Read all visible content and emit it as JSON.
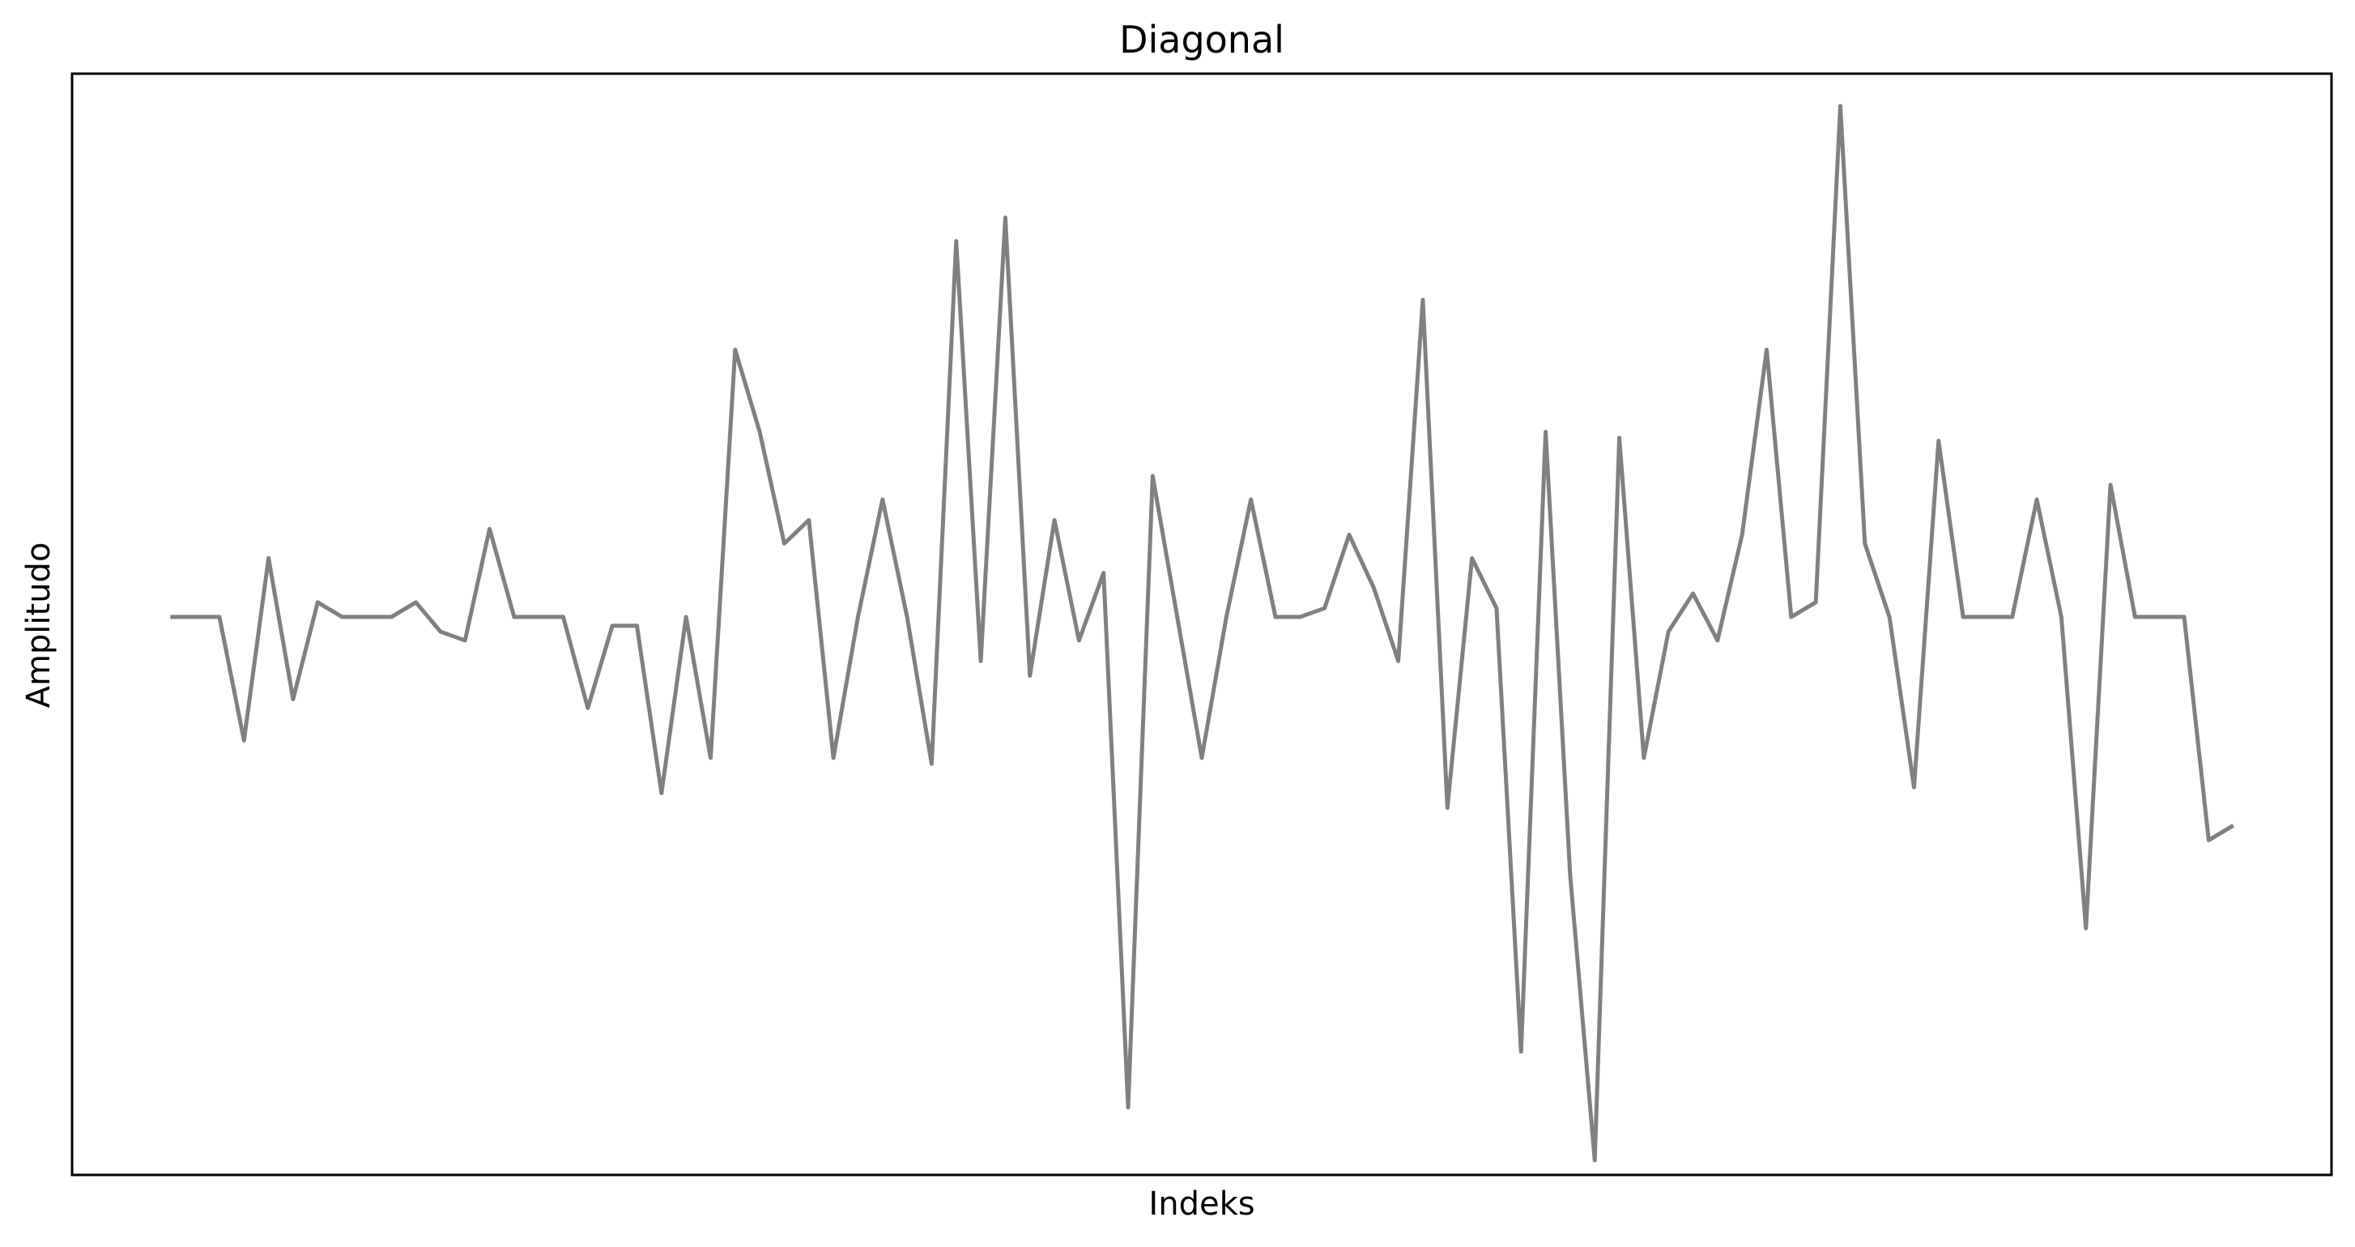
{
  "chart_data": {
    "type": "line",
    "title": "Diagonal",
    "xlabel": "Indeks",
    "ylabel": "Amplitudo",
    "xticks": [],
    "yticks": [],
    "grid": false,
    "legend": "none",
    "xlim": [
      -4,
      88
    ],
    "ylim": [
      -190,
      185
    ],
    "series": [
      {
        "color": "#808080",
        "x": [
          0,
          1,
          2,
          3,
          4,
          5,
          6,
          7,
          8,
          9,
          10,
          11,
          12,
          13,
          14,
          15,
          16,
          17,
          18,
          19,
          20,
          21,
          22,
          23,
          24,
          25,
          26,
          27,
          28,
          29,
          30,
          31,
          32,
          33,
          34,
          35,
          36,
          37,
          38,
          39,
          40,
          41,
          42,
          43,
          44,
          45,
          46,
          47,
          48,
          49,
          50,
          51,
          52,
          53,
          54,
          55,
          56,
          57,
          58,
          59,
          60,
          61,
          62,
          63,
          64,
          65,
          66,
          67,
          68,
          69,
          70,
          71,
          72,
          73,
          74,
          75,
          76,
          77,
          78,
          79,
          80,
          81,
          82,
          83,
          84
        ],
        "values": [
          0,
          0,
          0,
          -42,
          20,
          -28,
          5,
          0,
          0,
          0,
          5,
          -5,
          -8,
          30,
          0,
          0,
          0,
          -31,
          -3,
          -3,
          -60,
          0,
          -48,
          91,
          63,
          25,
          33,
          -48,
          0,
          40,
          0,
          -50,
          128,
          -15,
          136,
          -20,
          33,
          -8,
          15,
          -167,
          48,
          0,
          -48,
          0,
          40,
          0,
          0,
          3,
          28,
          10,
          -15,
          108,
          -65,
          20,
          3,
          -148,
          63,
          -88,
          -185,
          61,
          -48,
          -5,
          8,
          -8,
          28,
          91,
          0,
          5,
          174,
          25,
          0,
          -58,
          60,
          0,
          0,
          0,
          40,
          0,
          -106,
          45,
          0,
          0,
          0,
          -76,
          -71
        ]
      }
    ]
  }
}
